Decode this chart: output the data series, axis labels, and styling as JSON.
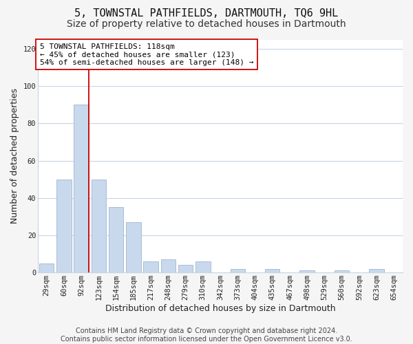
{
  "title": "5, TOWNSTAL PATHFIELDS, DARTMOUTH, TQ6 9HL",
  "subtitle": "Size of property relative to detached houses in Dartmouth",
  "xlabel": "Distribution of detached houses by size in Dartmouth",
  "ylabel": "Number of detached properties",
  "bar_labels": [
    "29sqm",
    "60sqm",
    "92sqm",
    "123sqm",
    "154sqm",
    "185sqm",
    "217sqm",
    "248sqm",
    "279sqm",
    "310sqm",
    "342sqm",
    "373sqm",
    "404sqm",
    "435sqm",
    "467sqm",
    "498sqm",
    "529sqm",
    "560sqm",
    "592sqm",
    "623sqm",
    "654sqm"
  ],
  "bar_values": [
    5,
    50,
    90,
    50,
    35,
    27,
    6,
    7,
    4,
    6,
    0,
    2,
    0,
    2,
    0,
    1,
    0,
    1,
    0,
    2,
    0
  ],
  "bar_color": "#c9d9ed",
  "bar_edge_color": "#a8bcd4",
  "vline_color": "#cc0000",
  "annotation_text": "5 TOWNSTAL PATHFIELDS: 118sqm\n← 45% of detached houses are smaller (123)\n54% of semi-detached houses are larger (148) →",
  "ylim": [
    0,
    125
  ],
  "yticks": [
    0,
    20,
    40,
    60,
    80,
    100,
    120
  ],
  "footer": "Contains HM Land Registry data © Crown copyright and database right 2024.\nContains public sector information licensed under the Open Government Licence v3.0.",
  "bg_color": "#f5f5f5",
  "plot_bg_color": "#ffffff",
  "grid_color": "#c8d4e4",
  "title_fontsize": 11,
  "subtitle_fontsize": 10,
  "label_fontsize": 9,
  "tick_fontsize": 7.5,
  "annotation_fontsize": 8,
  "footer_fontsize": 7
}
